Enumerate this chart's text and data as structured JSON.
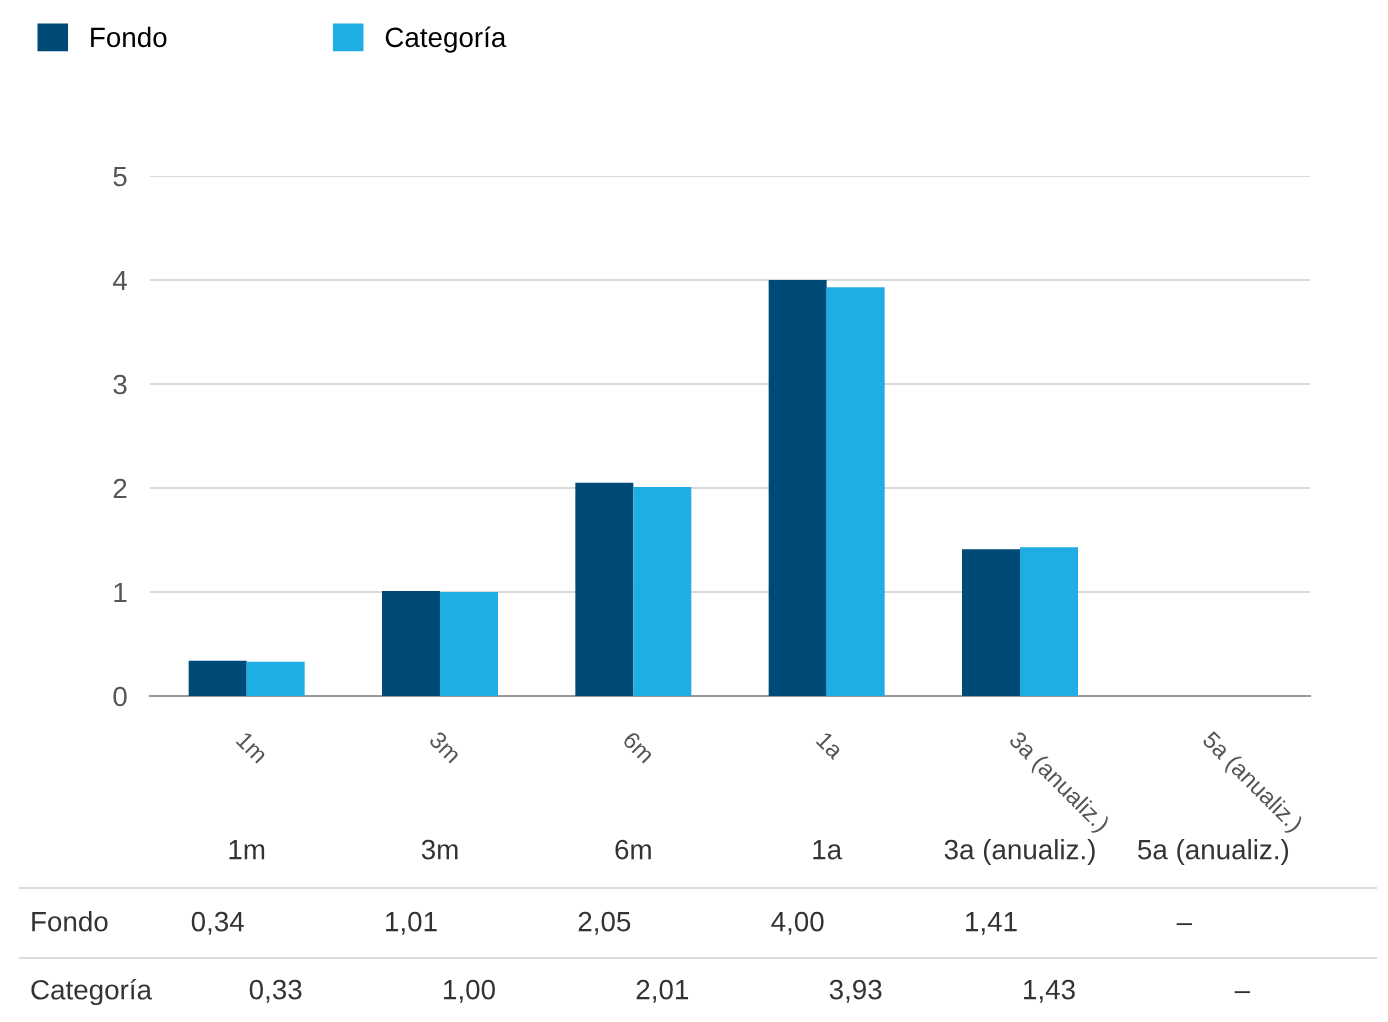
{
  "chart_data": {
    "type": "bar",
    "categories": [
      "1m",
      "3m",
      "6m",
      "1a",
      "3a (anualiz.)",
      "5a (anualiz.)"
    ],
    "series": [
      {
        "name": "Fondo",
        "color": "#004a77",
        "values": [
          0.34,
          1.01,
          2.05,
          4.0,
          1.41,
          null
        ],
        "value_labels": [
          "0,34",
          "1,01",
          "2,05",
          "4,00",
          "1,41",
          "–"
        ]
      },
      {
        "name": "Categoría",
        "color": "#1eaee3",
        "values": [
          0.33,
          1.0,
          2.01,
          3.93,
          1.43,
          null
        ],
        "value_labels": [
          "0,33",
          "1,00",
          "2,01",
          "3,93",
          "1,43",
          "–"
        ]
      }
    ],
    "ylim": [
      0,
      5
    ],
    "yticks": [
      0,
      1,
      2,
      3,
      4,
      5
    ],
    "grid": "y",
    "legend": "top left"
  }
}
